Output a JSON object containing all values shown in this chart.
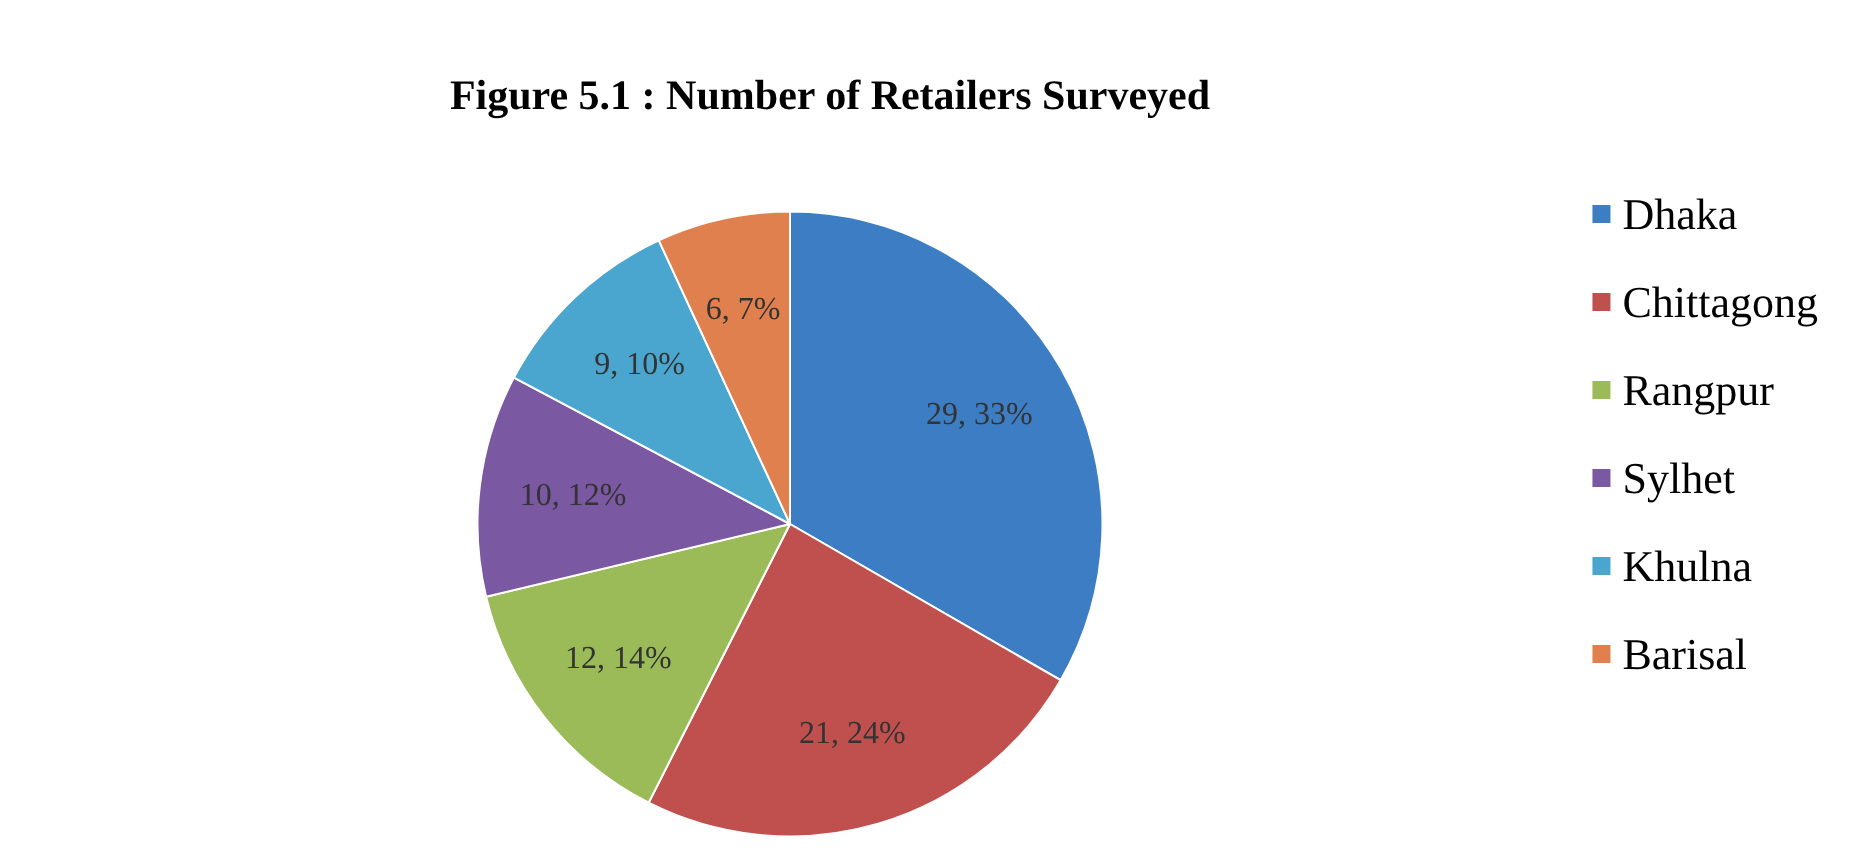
{
  "chart_data": {
    "type": "pie",
    "title": "Figure 5.1 : Number of Retailers Surveyed",
    "categories": [
      "Dhaka",
      "Chittagong",
      "Rangpur",
      "Sylhet",
      "Khulna",
      "Barisal"
    ],
    "values": [
      29,
      21,
      12,
      10,
      9,
      6
    ],
    "value_labels": [
      "29, 33%",
      "21, 24%",
      "12, 14%",
      "10, 12%",
      "9, 10%",
      "6, 7%"
    ],
    "colors": [
      "#3c7dc4",
      "#c0504d",
      "#9bbb59",
      "#7a58a2",
      "#4aa6cf",
      "#e0804f"
    ],
    "legend": "right"
  }
}
